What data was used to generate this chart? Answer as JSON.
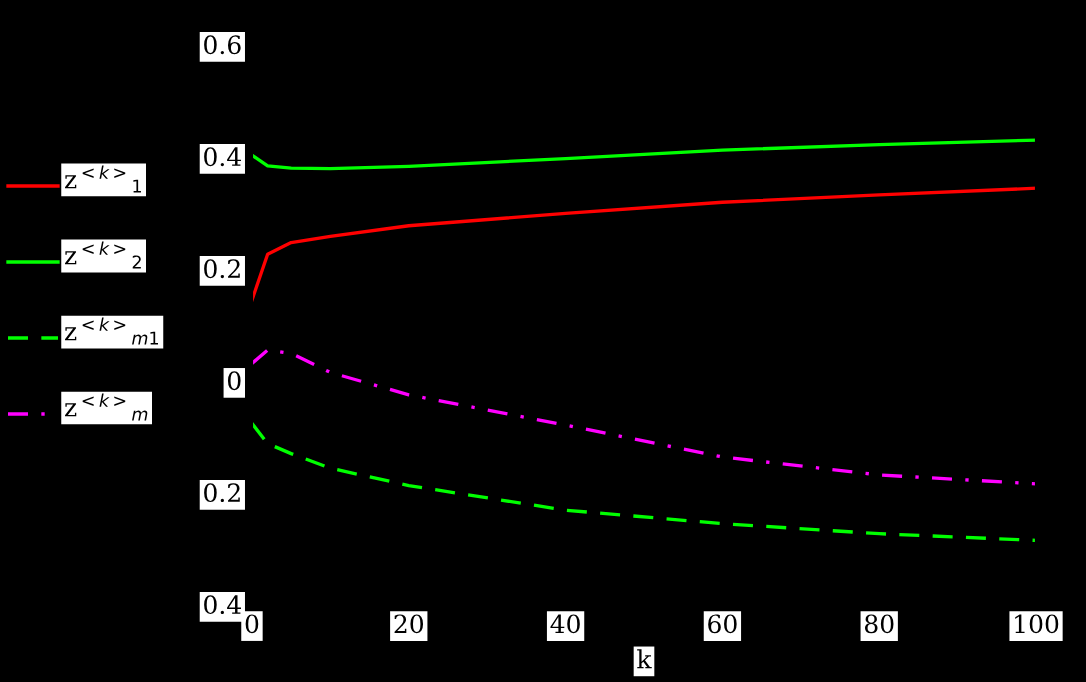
{
  "chart_data": {
    "type": "line",
    "xlabel": "k",
    "x": [
      0,
      2,
      5,
      10,
      20,
      40,
      60,
      80,
      100
    ],
    "series": [
      {
        "name": "z$^{<k>}$$_{1}$",
        "color": "#ff0000",
        "line_style": "solid",
        "values": [
          0.143,
          0.225,
          0.246,
          0.257,
          0.276,
          0.298,
          0.318,
          0.331,
          0.343
        ]
      },
      {
        "name": "z$^{<k>}$$_{2}$",
        "color": "#00ff00",
        "line_style": "solid",
        "values": [
          0.402,
          0.383,
          0.379,
          0.378,
          0.382,
          0.396,
          0.411,
          0.421,
          0.429
        ]
      },
      {
        "name": "z$^{<k>}$$_{m1}$",
        "color": "#00ff00",
        "line_style": "dashed",
        "values": [
          -0.077,
          -0.113,
          -0.131,
          -0.157,
          -0.188,
          -0.232,
          -0.256,
          -0.274,
          -0.286
        ]
      },
      {
        "name": "z$^{<k>}$$_{m}$",
        "color": "#ff00ff",
        "line_style": "dashdot",
        "values": [
          0.03,
          0.054,
          0.048,
          0.014,
          -0.026,
          -0.08,
          -0.137,
          -0.169,
          -0.185
        ]
      }
    ],
    "xlim": [
      0,
      100
    ],
    "xticks": [
      0,
      20,
      40,
      60,
      80,
      100
    ],
    "ylim": [
      -0.4,
      0.6
    ],
    "yticks": [
      {
        "value": -0.4,
        "label": "0.4"
      },
      {
        "value": -0.2,
        "label": "0.2"
      },
      0,
      0.2,
      0.4,
      0.6
    ],
    "legend": "left",
    "grid": false
  }
}
